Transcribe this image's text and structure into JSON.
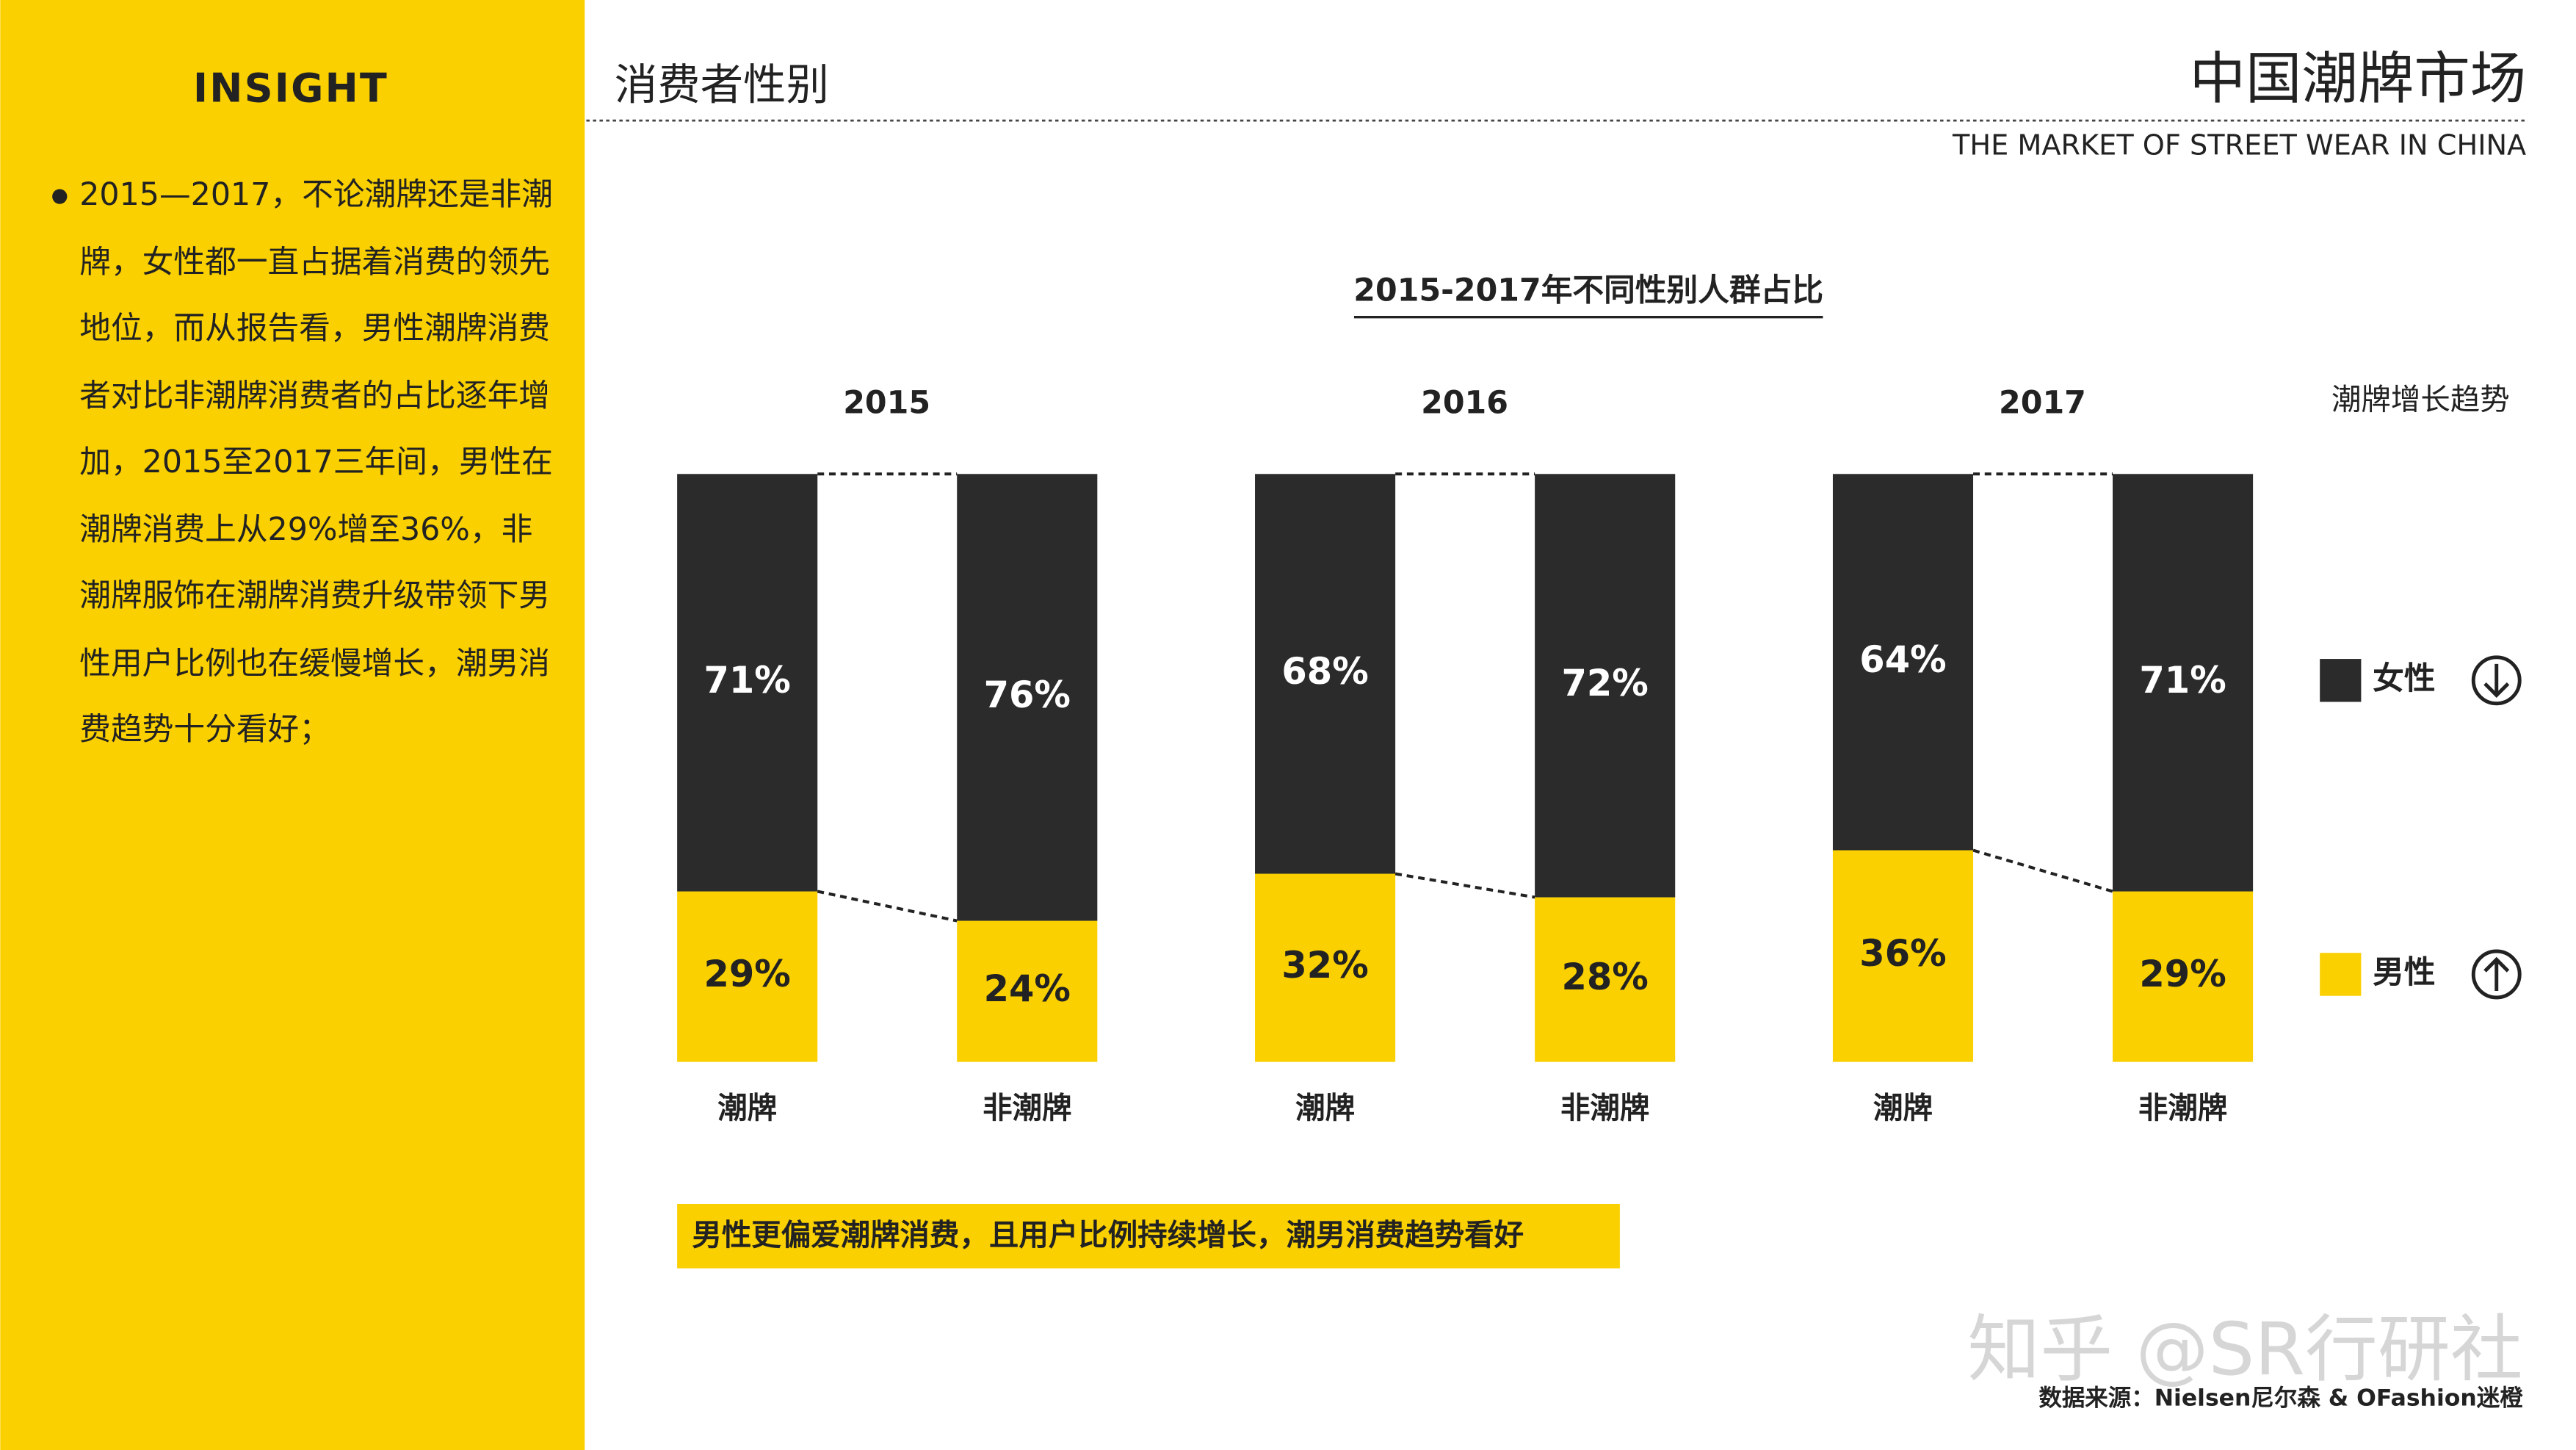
{
  "header": {
    "section": "消费者性别",
    "brand": "中国潮牌市场",
    "brand_en": "THE MARKET OF STREET WEAR IN CHINA"
  },
  "sidebar": {
    "title": "INSIGHT",
    "text": "2015—2017，不论潮牌还是非潮牌，女性都一直占据着消费的领先地位，而从报告看，男性潮牌消费者对比非潮牌消费者的占比逐年增加，2015至2017三年间，男性在潮牌消费上从29%增至36%，非潮牌服饰在潮牌消费升级带领下男性用户比例也在缓慢增长，潮男消费趋势十分看好；"
  },
  "chart_data": {
    "type": "stacked_bar",
    "title": "2015-2017年不同性别人群占比",
    "groups": [
      "2015",
      "2016",
      "2017"
    ],
    "categories": [
      "潮牌",
      "非潮牌",
      "潮牌",
      "非潮牌",
      "潮牌",
      "非潮牌"
    ],
    "series": [
      {
        "name": "女性",
        "color": "#2b2b2b",
        "values": [
          71,
          76,
          68,
          72,
          64,
          71
        ],
        "value_labels": [
          "71%",
          "76%",
          "68%",
          "72%",
          "64%",
          "71%"
        ]
      },
      {
        "name": "男性",
        "color": "#fad000",
        "values": [
          29,
          24,
          32,
          28,
          36,
          29
        ],
        "value_labels": [
          "29%",
          "24%",
          "32%",
          "28%",
          "36%",
          "29%"
        ]
      }
    ],
    "ylim": [
      0,
      100
    ],
    "legend_title": "潮牌增长趋势",
    "annotation": "男性更偏爱潮牌消费，且用户比例持续增长，潮男消费趋势看好"
  },
  "footer": {
    "source": "数据来源：Nielsen尼尔森 & OFashion迷橙",
    "watermark": "知乎 @SR行研社"
  }
}
